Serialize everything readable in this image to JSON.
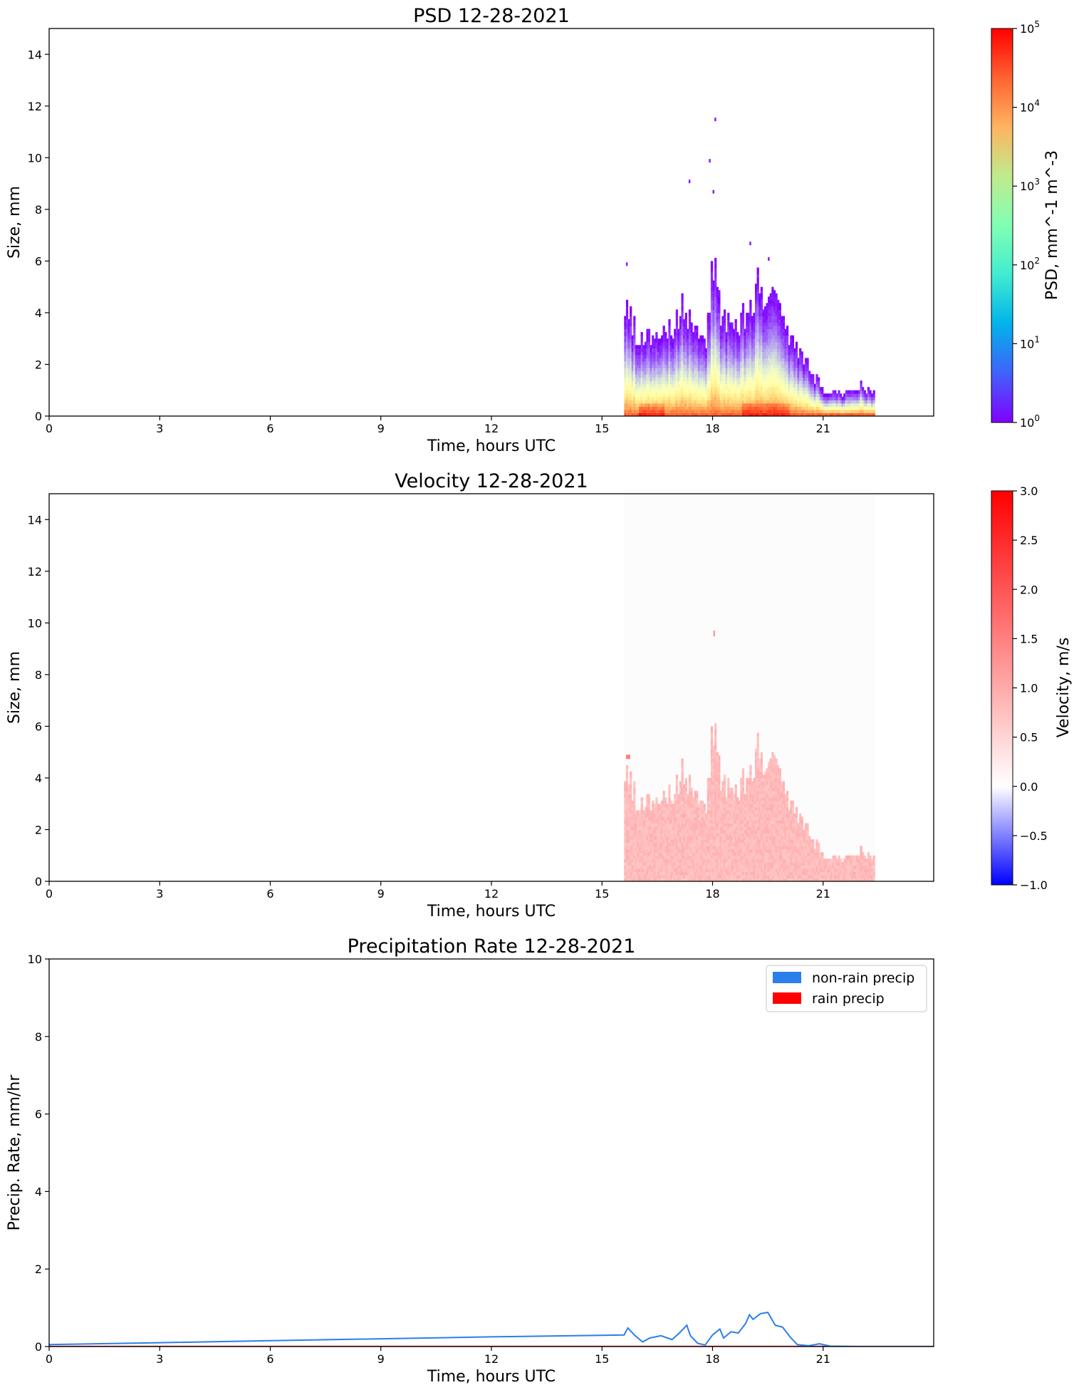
{
  "chart_data": [
    {
      "type": "heatmap",
      "title": "PSD 12-28-2021",
      "xlabel": "Time, hours UTC",
      "ylabel": "Size, mm",
      "xlim": [
        0,
        24
      ],
      "ylim": [
        0,
        15
      ],
      "xticks": [
        0,
        3,
        6,
        9,
        12,
        15,
        18,
        21
      ],
      "yticks": [
        0,
        2,
        4,
        6,
        8,
        10,
        12,
        14
      ],
      "colorbar": {
        "label": "PSD, mm^-1 m^-3",
        "scale": "log",
        "range": [
          1,
          100000
        ],
        "ticks": [
          "10^0",
          "10^1",
          "10^2",
          "10^3",
          "10^4",
          "10^5"
        ],
        "colormap": "rainbow"
      },
      "data_extent_hours": [
        15.6,
        22.4
      ],
      "max_size_profile": [
        [
          15.6,
          4.0
        ],
        [
          15.8,
          3.7
        ],
        [
          16.0,
          2.9
        ],
        [
          16.4,
          3.0
        ],
        [
          16.8,
          3.3
        ],
        [
          17.2,
          4.6
        ],
        [
          17.4,
          3.4
        ],
        [
          17.6,
          3.1
        ],
        [
          17.8,
          2.9
        ],
        [
          18.0,
          6.0
        ],
        [
          18.2,
          4.0
        ],
        [
          18.5,
          3.7
        ],
        [
          18.9,
          4.0
        ],
        [
          19.2,
          5.0
        ],
        [
          19.5,
          4.9
        ],
        [
          19.8,
          4.0
        ],
        [
          20.1,
          2.8
        ],
        [
          20.4,
          2.3
        ],
        [
          20.7,
          1.6
        ],
        [
          21.0,
          1.0
        ],
        [
          21.5,
          0.8
        ],
        [
          22.0,
          1.2
        ],
        [
          22.4,
          0.8
        ]
      ],
      "sparse_large_drops": [
        [
          15.65,
          5.8
        ],
        [
          17.35,
          9.0
        ],
        [
          17.9,
          9.8
        ],
        [
          18.05,
          11.4
        ],
        [
          18.0,
          8.6
        ],
        [
          19.0,
          6.6
        ],
        [
          19.5,
          6.0
        ]
      ],
      "peak_psd_hours": [
        [
          16.0,
          16.7
        ],
        [
          18.8,
          20.1
        ]
      ]
    },
    {
      "type": "heatmap",
      "title": "Velocity 12-28-2021",
      "xlabel": "Time, hours UTC",
      "ylabel": "Size, mm",
      "xlim": [
        0,
        24
      ],
      "ylim": [
        0,
        15
      ],
      "xticks": [
        0,
        3,
        6,
        9,
        12,
        15,
        18,
        21
      ],
      "yticks": [
        0,
        2,
        4,
        6,
        8,
        10,
        12,
        14
      ],
      "colorbar": {
        "label": "Velocity, m/s",
        "range": [
          -1.0,
          3.0
        ],
        "ticks": [
          "3.0",
          "2.5",
          "2.0",
          "1.5",
          "1.0",
          "0.5",
          "0.0",
          "−0.5",
          "−1.0"
        ],
        "colormap": "bwr"
      },
      "data_extent_hours": [
        15.6,
        22.4
      ],
      "typical_velocity": 0.8
    },
    {
      "type": "line",
      "title": "Precipitation Rate 12-28-2021",
      "xlabel": "Time, hours UTC",
      "ylabel": "Precip. Rate, mm/hr",
      "xlim": [
        0,
        24
      ],
      "ylim": [
        0,
        10
      ],
      "xticks": [
        0,
        3,
        6,
        9,
        12,
        15,
        18,
        21
      ],
      "yticks": [
        0,
        2,
        4,
        6,
        8,
        10
      ],
      "legend": {
        "placement": "top-right"
      },
      "series": [
        {
          "name": "non-rain precip",
          "color": "#2a7fea",
          "x": [
            0,
            3,
            6,
            9,
            12,
            15,
            15.6,
            15.7,
            15.9,
            16.1,
            16.3,
            16.6,
            16.9,
            17.1,
            17.3,
            17.4,
            17.6,
            17.8,
            18.0,
            18.2,
            18.3,
            18.5,
            18.7,
            18.9,
            19.0,
            19.1,
            19.3,
            19.5,
            19.7,
            19.9,
            20.1,
            20.3,
            20.6,
            20.9,
            21.2,
            22.0,
            23.0,
            24.0
          ],
          "values": [
            0.05,
            0.1,
            0.15,
            0.2,
            0.25,
            0.29,
            0.3,
            0.48,
            0.28,
            0.12,
            0.22,
            0.28,
            0.18,
            0.35,
            0.55,
            0.28,
            0.08,
            0.04,
            0.3,
            0.45,
            0.22,
            0.38,
            0.35,
            0.6,
            0.82,
            0.7,
            0.85,
            0.88,
            0.55,
            0.5,
            0.25,
            0.05,
            0.02,
            0.07,
            0.01,
            0.0,
            0.0,
            0.0
          ]
        },
        {
          "name": "rain precip",
          "color": "#ff0000",
          "x": [
            0,
            24
          ],
          "values": [
            0,
            0
          ]
        }
      ]
    }
  ]
}
